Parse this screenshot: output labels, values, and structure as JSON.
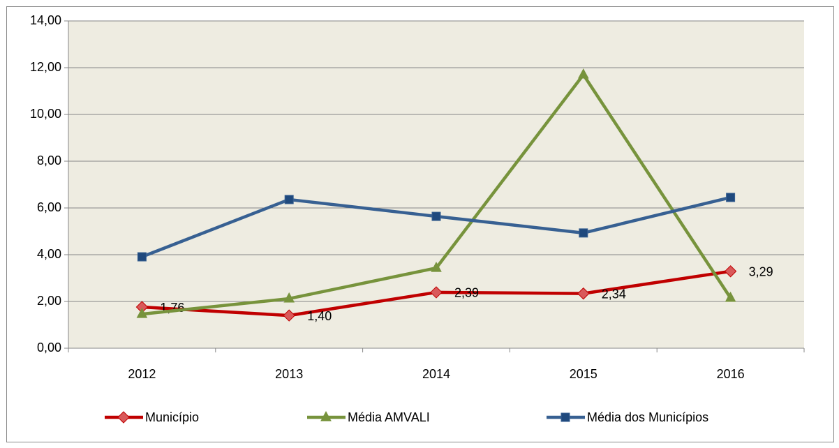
{
  "chart_data": {
    "type": "line",
    "categories": [
      "2012",
      "2013",
      "2014",
      "2015",
      "2016"
    ],
    "series": [
      {
        "name": "Município",
        "color": "#c00000",
        "marker": "diamond",
        "marker_color": "#d9595a",
        "values": [
          1.76,
          1.4,
          2.39,
          2.34,
          3.29
        ],
        "value_labels": [
          "1,76",
          "1,40",
          "2,39",
          "2,34",
          "3,29"
        ]
      },
      {
        "name": "Média AMVALI",
        "color": "#77933c",
        "marker": "triangle",
        "marker_color": "#77933c",
        "values": [
          1.46,
          2.12,
          3.43,
          11.7,
          2.15
        ]
      },
      {
        "name": "Média dos Municípios",
        "color": "#376092",
        "marker": "square",
        "marker_color": "#1f497d",
        "values": [
          3.91,
          6.36,
          5.64,
          4.93,
          6.45
        ]
      }
    ],
    "ylim": [
      0,
      14
    ],
    "yticks": [
      {
        "value": 0,
        "label": "0,00"
      },
      {
        "value": 2,
        "label": "2,00"
      },
      {
        "value": 4,
        "label": "4,00"
      },
      {
        "value": 6,
        "label": "6,00"
      },
      {
        "value": 8,
        "label": "8,00"
      },
      {
        "value": 10,
        "label": "10,00"
      },
      {
        "value": 12,
        "label": "12,00"
      },
      {
        "value": 14,
        "label": "14,00"
      }
    ],
    "grid": true,
    "legend": "bottom"
  }
}
